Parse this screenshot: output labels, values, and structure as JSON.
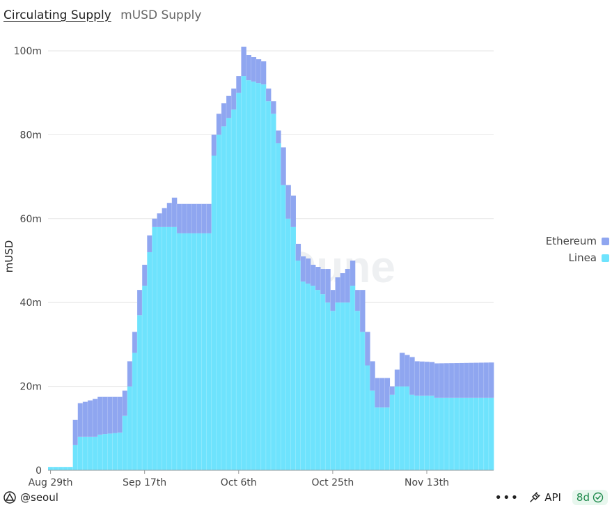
{
  "tabs": {
    "active": "Circulating Supply",
    "inactive": "mUSD Supply"
  },
  "watermark": "Dune",
  "legend": [
    {
      "name": "Ethereum",
      "color": "#8fa6f0"
    },
    {
      "name": "Linea",
      "color": "#6ee3fd"
    }
  ],
  "footer": {
    "author": "@seoul",
    "more": "•••",
    "api_label": "API",
    "age_badge": "8d"
  },
  "chart_data": {
    "type": "bar",
    "stacked": true,
    "ylabel": "mUSD",
    "xlabel": "",
    "ylim": [
      0,
      100000000
    ],
    "yticks": [
      {
        "value": 0,
        "label": "0"
      },
      {
        "value": 20000000,
        "label": "20m"
      },
      {
        "value": 40000000,
        "label": "40m"
      },
      {
        "value": 60000000,
        "label": "60m"
      },
      {
        "value": 80000000,
        "label": "80m"
      },
      {
        "value": 100000000,
        "label": "100m"
      }
    ],
    "xticks": [
      {
        "index": 0,
        "label": "Aug 29th"
      },
      {
        "index": 19,
        "label": "Sep 17th"
      },
      {
        "index": 38,
        "label": "Oct 6th"
      },
      {
        "index": 57,
        "label": "Oct 25th"
      },
      {
        "index": 76,
        "label": "Nov 13th"
      }
    ],
    "grid": true,
    "legend_position": "right",
    "stack_points": [
      [
        0,
        0.8,
        0
      ],
      [
        4,
        0.8,
        0
      ],
      [
        5,
        6,
        6
      ],
      [
        6,
        8,
        8
      ],
      [
        9,
        8,
        9
      ],
      [
        10,
        8.5,
        9
      ],
      [
        14,
        9,
        8.5
      ],
      [
        15,
        13,
        6
      ],
      [
        16,
        20,
        6
      ],
      [
        17,
        28,
        5
      ],
      [
        18,
        37,
        6
      ],
      [
        19,
        44,
        5
      ],
      [
        20,
        52,
        4
      ],
      [
        21,
        58,
        2
      ],
      [
        25,
        58,
        7
      ],
      [
        26,
        56.5,
        7
      ],
      [
        32,
        56.5,
        7
      ],
      [
        33,
        75,
        5
      ],
      [
        34,
        80,
        5
      ],
      [
        35,
        82,
        5.5
      ],
      [
        37,
        86,
        5
      ],
      [
        38,
        90,
        4
      ],
      [
        39,
        94,
        7
      ],
      [
        40,
        93,
        6
      ],
      [
        43,
        92,
        5.5
      ],
      [
        44,
        88,
        3
      ],
      [
        45,
        85,
        3
      ],
      [
        46,
        78,
        3
      ],
      [
        47,
        68,
        9
      ],
      [
        48,
        60,
        8
      ],
      [
        49,
        58,
        7.5
      ],
      [
        50,
        50,
        4
      ],
      [
        51,
        45,
        6
      ],
      [
        52,
        44.5,
        6
      ],
      [
        53,
        44,
        5
      ],
      [
        55,
        42,
        6
      ],
      [
        56,
        40,
        8
      ],
      [
        57,
        38,
        5
      ],
      [
        58,
        40,
        6
      ],
      [
        60,
        40,
        8
      ],
      [
        61,
        44,
        6
      ],
      [
        62,
        38,
        5
      ],
      [
        63,
        33,
        10
      ],
      [
        64,
        25,
        8
      ],
      [
        65,
        19,
        7
      ],
      [
        66,
        15,
        7
      ],
      [
        68,
        15,
        7
      ],
      [
        69,
        18,
        2
      ],
      [
        70,
        20,
        4
      ],
      [
        71,
        20,
        8
      ],
      [
        72,
        20,
        7.5
      ],
      [
        73,
        18,
        9
      ],
      [
        74,
        17.8,
        8.2
      ],
      [
        77,
        17.8,
        8
      ],
      [
        78,
        17.3,
        8.2
      ],
      [
        89,
        17.3,
        8.4
      ]
    ],
    "series": [
      {
        "name": "Linea",
        "color": "#6ee3fd",
        "unit": "m"
      },
      {
        "name": "Ethereum",
        "color": "#8fa6f0",
        "unit": "m"
      }
    ]
  }
}
